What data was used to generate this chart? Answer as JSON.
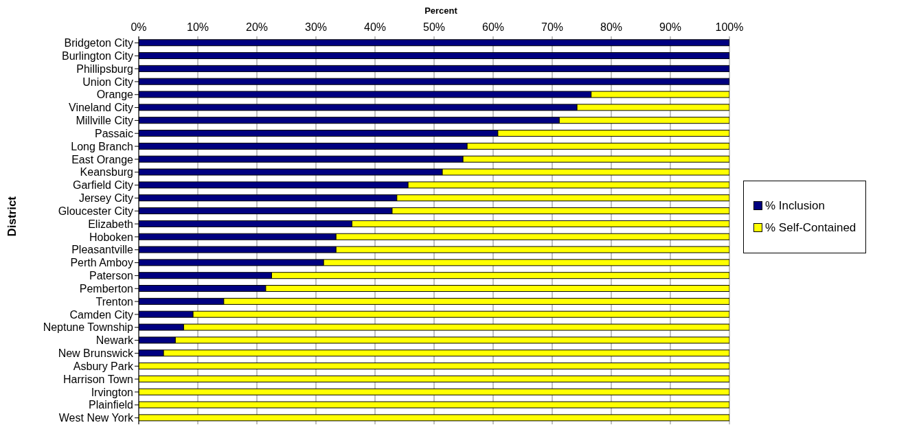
{
  "chart_data": {
    "type": "bar",
    "orientation": "horizontal",
    "stacked": true,
    "xlabel": "Percent",
    "ylabel": "District",
    "categories": [
      "Bridgeton City",
      "Burlington City",
      "Phillipsburg",
      "Union City",
      "Orange",
      "Vineland City",
      "Millville City",
      "Passaic",
      "Long Branch",
      "East Orange",
      "Keansburg",
      "Garfield City",
      "Jersey City",
      "Gloucester City",
      "Elizabeth",
      "Hoboken",
      "Pleasantville",
      "Perth Amboy",
      "Paterson",
      "Pemberton",
      "Trenton",
      "Camden City",
      "Neptune Township",
      "Newark",
      "New Brunswick",
      "Asbury Park",
      "Harrison Town",
      "Irvington",
      "Plainfield",
      "West New York"
    ],
    "series": [
      {
        "name": "% Inclusion",
        "color": "#000080",
        "values": [
          100,
          100,
          100,
          100,
          76.6,
          74.2,
          71.2,
          60.8,
          55.6,
          54.9,
          51.4,
          45.6,
          43.7,
          42.9,
          36.1,
          33.4,
          33.4,
          31.3,
          22.5,
          21.5,
          14.4,
          9.2,
          7.6,
          6.2,
          4.2,
          0,
          0,
          0,
          0,
          0
        ]
      },
      {
        "name": "% Self-Contained",
        "color": "#ffff00",
        "values": [
          0,
          0,
          0,
          0,
          23.4,
          25.8,
          28.8,
          39.2,
          44.4,
          45.1,
          48.6,
          54.4,
          56.3,
          57.1,
          63.9,
          66.6,
          66.6,
          68.7,
          77.5,
          78.5,
          85.6,
          90.8,
          92.4,
          93.8,
          95.8,
          100,
          100,
          100,
          100,
          100
        ]
      }
    ],
    "xlim": [
      0,
      100
    ],
    "xticks": [
      {
        "value": 0,
        "label": "0%"
      },
      {
        "value": 10,
        "label": "10%"
      },
      {
        "value": 20,
        "label": "20%"
      },
      {
        "value": 30,
        "label": "30%"
      },
      {
        "value": 40,
        "label": "40%"
      },
      {
        "value": 50,
        "label": "50%"
      },
      {
        "value": 60,
        "label": "60%"
      },
      {
        "value": 70,
        "label": "70%"
      },
      {
        "value": 80,
        "label": "80%"
      },
      {
        "value": 90,
        "label": "90%"
      },
      {
        "value": 100,
        "label": "100%"
      }
    ],
    "grid": "x",
    "legend": "right"
  }
}
